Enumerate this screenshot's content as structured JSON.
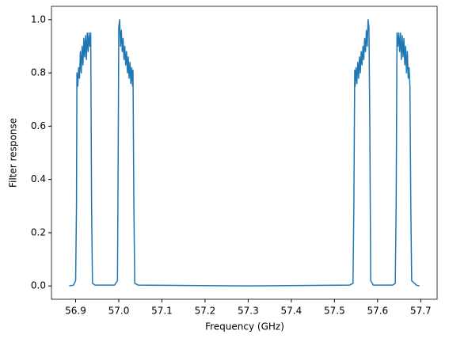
{
  "chart_data": {
    "type": "line",
    "xlabel": "Frequency (GHz)",
    "ylabel": "Filter response",
    "x": [
      56.885,
      56.895,
      56.9,
      56.902,
      56.903,
      56.905,
      56.907,
      56.909,
      56.911,
      56.913,
      56.915,
      56.917,
      56.919,
      56.921,
      56.923,
      56.925,
      56.927,
      56.929,
      56.931,
      56.933,
      56.935,
      56.937,
      56.939,
      56.945,
      56.99,
      56.997,
      56.999,
      57.0,
      57.002,
      57.004,
      57.006,
      57.008,
      57.01,
      57.012,
      57.014,
      57.016,
      57.018,
      57.02,
      57.022,
      57.024,
      57.026,
      57.028,
      57.03,
      57.032,
      57.033,
      57.035,
      57.037,
      57.045,
      57.3,
      57.535,
      57.543,
      57.545,
      57.547,
      57.548,
      57.55,
      57.552,
      57.554,
      57.556,
      57.558,
      57.56,
      57.562,
      57.564,
      57.566,
      57.568,
      57.57,
      57.572,
      57.574,
      57.576,
      57.578,
      57.58,
      57.582,
      57.584,
      57.59,
      57.635,
      57.641,
      57.643,
      57.645,
      57.647,
      57.649,
      57.651,
      57.653,
      57.655,
      57.657,
      57.659,
      57.661,
      57.663,
      57.665,
      57.667,
      57.669,
      57.671,
      57.673,
      57.675,
      57.677,
      57.679,
      57.69,
      57.697
    ],
    "series": [
      {
        "color": "#1f77b4",
        "values": [
          0,
          0.003,
          0.02,
          0.3,
          0.8,
          0.75,
          0.82,
          0.78,
          0.88,
          0.8,
          0.9,
          0.83,
          0.93,
          0.86,
          0.94,
          0.85,
          0.95,
          0.88,
          0.95,
          0.9,
          0.95,
          0.3,
          0.01,
          0.003,
          0.003,
          0.02,
          0.6,
          0.97,
          1.0,
          0.9,
          0.96,
          0.88,
          0.93,
          0.85,
          0.9,
          0.83,
          0.88,
          0.8,
          0.86,
          0.78,
          0.84,
          0.76,
          0.82,
          0.75,
          0.81,
          0.3,
          0.01,
          0.003,
          0,
          0.003,
          0.01,
          0.3,
          0.81,
          0.75,
          0.82,
          0.76,
          0.84,
          0.78,
          0.86,
          0.8,
          0.88,
          0.83,
          0.9,
          0.85,
          0.93,
          0.88,
          0.96,
          0.9,
          1.0,
          0.97,
          0.6,
          0.02,
          0.003,
          0.003,
          0.01,
          0.3,
          0.95,
          0.9,
          0.95,
          0.88,
          0.95,
          0.85,
          0.94,
          0.86,
          0.93,
          0.83,
          0.9,
          0.8,
          0.88,
          0.78,
          0.82,
          0.75,
          0.3,
          0.02,
          0.003,
          0
        ]
      }
    ],
    "xlim": [
      56.844,
      57.738
    ],
    "ylim": [
      -0.05,
      1.05
    ],
    "xticks": [
      56.9,
      {
        "value": 57,
        "label": "57.0"
      },
      57.1,
      57.2,
      57.3,
      57.4,
      57.5,
      57.6,
      57.7
    ],
    "yticks": [
      {
        "value": 0,
        "label": "0.0"
      },
      0.2,
      0.4,
      0.6,
      0.8,
      {
        "value": 1,
        "label": "1.0"
      }
    ]
  }
}
